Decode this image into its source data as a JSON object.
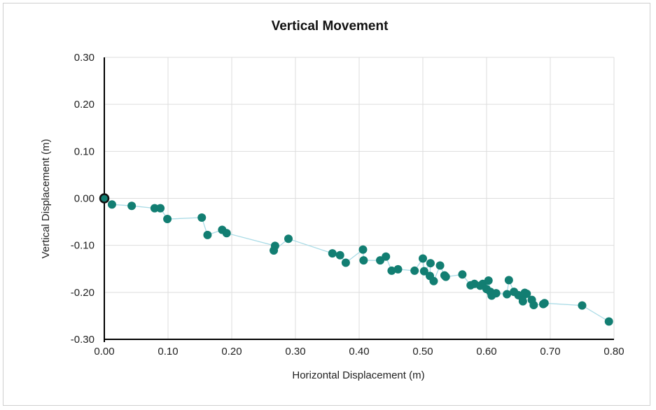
{
  "chart_data": {
    "type": "scatter",
    "title": "Vertical Movement",
    "xlabel": "Horizontal Displacement (m)",
    "ylabel": "Vertical Displacement (m)",
    "xlim": [
      0.0,
      0.8
    ],
    "ylim": [
      -0.3,
      0.3
    ],
    "x_ticks": [
      "0.00",
      "0.10",
      "0.20",
      "0.30",
      "0.40",
      "0.50",
      "0.60",
      "0.70",
      "0.80"
    ],
    "y_ticks": [
      "0.30",
      "0.20",
      "0.10",
      "0.00",
      "-0.10",
      "-0.20",
      "-0.30"
    ],
    "grid": true,
    "connected": true,
    "colors": {
      "point": "#127e72",
      "line": "#a9dbe6",
      "origin_stroke": "#111111",
      "grid": "#dddddd",
      "axis": "#000000"
    },
    "origin": {
      "x": 0.0,
      "y": 0.0
    },
    "points": [
      {
        "x": 0.012,
        "y": -0.013
      },
      {
        "x": 0.043,
        "y": -0.016
      },
      {
        "x": 0.079,
        "y": -0.021
      },
      {
        "x": 0.088,
        "y": -0.021
      },
      {
        "x": 0.099,
        "y": -0.044
      },
      {
        "x": 0.153,
        "y": -0.041
      },
      {
        "x": 0.162,
        "y": -0.078
      },
      {
        "x": 0.185,
        "y": -0.067
      },
      {
        "x": 0.192,
        "y": -0.074
      },
      {
        "x": 0.268,
        "y": -0.101
      },
      {
        "x": 0.266,
        "y": -0.111
      },
      {
        "x": 0.289,
        "y": -0.086
      },
      {
        "x": 0.358,
        "y": -0.117
      },
      {
        "x": 0.37,
        "y": -0.121
      },
      {
        "x": 0.379,
        "y": -0.137
      },
      {
        "x": 0.406,
        "y": -0.109
      },
      {
        "x": 0.407,
        "y": -0.132
      },
      {
        "x": 0.433,
        "y": -0.132
      },
      {
        "x": 0.442,
        "y": -0.124
      },
      {
        "x": 0.451,
        "y": -0.154
      },
      {
        "x": 0.461,
        "y": -0.151
      },
      {
        "x": 0.487,
        "y": -0.154
      },
      {
        "x": 0.5,
        "y": -0.128
      },
      {
        "x": 0.502,
        "y": -0.155
      },
      {
        "x": 0.512,
        "y": -0.138
      },
      {
        "x": 0.511,
        "y": -0.165
      },
      {
        "x": 0.517,
        "y": -0.176
      },
      {
        "x": 0.527,
        "y": -0.143
      },
      {
        "x": 0.534,
        "y": -0.164
      },
      {
        "x": 0.536,
        "y": -0.167
      },
      {
        "x": 0.562,
        "y": -0.162
      },
      {
        "x": 0.575,
        "y": -0.185
      },
      {
        "x": 0.581,
        "y": -0.182
      },
      {
        "x": 0.59,
        "y": -0.186
      },
      {
        "x": 0.594,
        "y": -0.182
      },
      {
        "x": 0.6,
        "y": -0.193
      },
      {
        "x": 0.603,
        "y": -0.175
      },
      {
        "x": 0.606,
        "y": -0.199
      },
      {
        "x": 0.608,
        "y": -0.207
      },
      {
        "x": 0.615,
        "y": -0.202
      },
      {
        "x": 0.632,
        "y": -0.204
      },
      {
        "x": 0.635,
        "y": -0.174
      },
      {
        "x": 0.643,
        "y": -0.199
      },
      {
        "x": 0.65,
        "y": -0.206
      },
      {
        "x": 0.656,
        "y": -0.211
      },
      {
        "x": 0.657,
        "y": -0.219
      },
      {
        "x": 0.66,
        "y": -0.201
      },
      {
        "x": 0.663,
        "y": -0.203
      },
      {
        "x": 0.671,
        "y": -0.216
      },
      {
        "x": 0.674,
        "y": -0.227
      },
      {
        "x": 0.689,
        "y": -0.225
      },
      {
        "x": 0.691,
        "y": -0.223
      },
      {
        "x": 0.75,
        "y": -0.228
      },
      {
        "x": 0.792,
        "y": -0.262
      }
    ]
  }
}
